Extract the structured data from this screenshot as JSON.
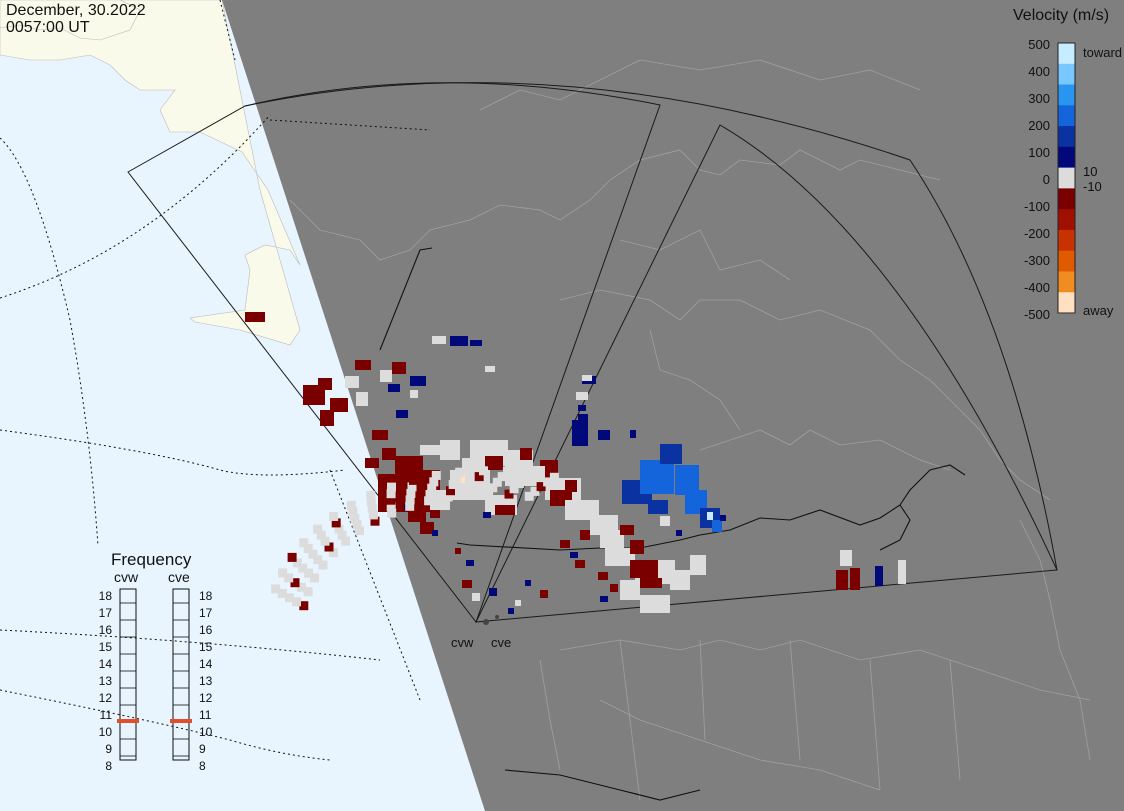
{
  "header": {
    "date": "December, 30.2022",
    "time": "0057:00 UT"
  },
  "legend": {
    "title": "Velocity (m/s)",
    "ticks": [
      "500",
      "400",
      "300",
      "200",
      "100",
      "0",
      "-100",
      "-200",
      "-300",
      "-400",
      "-500"
    ],
    "toward_label": "toward",
    "away_label": "away",
    "threshold_pos": "10",
    "threshold_neg": "-10",
    "colors": [
      "#c8ecff",
      "#78c8ff",
      "#2896f0",
      "#1464dc",
      "#0a32a0",
      "#00087a",
      "#dcdcdc",
      "#7a0000",
      "#a01000",
      "#c83200",
      "#e05a00",
      "#f08c20",
      "#ffe0c0"
    ]
  },
  "frequency_panel": {
    "title": "Frequency",
    "radars": [
      "cvw",
      "cve"
    ],
    "levels": [
      "18",
      "17",
      "16",
      "15",
      "14",
      "13",
      "12",
      "11",
      "10",
      "9",
      "8"
    ],
    "selected_mhz": [
      11,
      11
    ],
    "marker_color": "#e0502a"
  },
  "radar_sites": {
    "cvw_label": "cvw",
    "cve_label": "cve"
  }
}
